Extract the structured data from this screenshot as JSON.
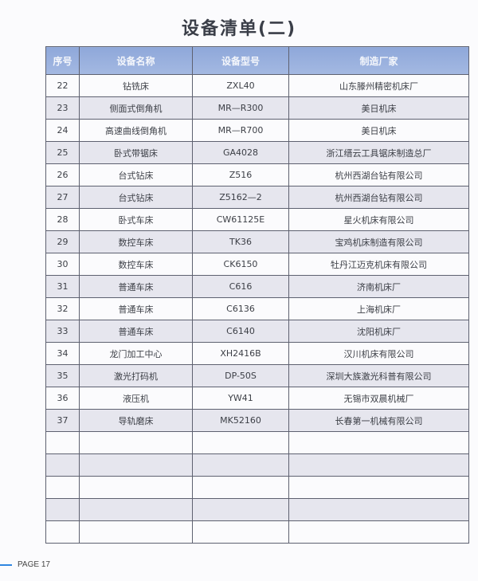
{
  "title": "设备清单(二)",
  "table": {
    "headers": [
      "序号",
      "设备名称",
      "设备型号",
      "制造厂家"
    ],
    "rows": [
      [
        "22",
        "钻铣床",
        "ZXL40",
        "山东滕州精密机床厂"
      ],
      [
        "23",
        "侧面式倒角机",
        "MR—R300",
        "美日机床"
      ],
      [
        "24",
        "高速曲线倒角机",
        "MR—R700",
        "美日机床"
      ],
      [
        "25",
        "卧式带锯床",
        "GA4028",
        "浙江缙云工具锯床制造总厂"
      ],
      [
        "26",
        "台式钻床",
        "Z516",
        "杭州西湖台钻有限公司"
      ],
      [
        "27",
        "台式钻床",
        "Z5162—2",
        "杭州西湖台钻有限公司"
      ],
      [
        "28",
        "卧式车床",
        "CW61125E",
        "星火机床有限公司"
      ],
      [
        "29",
        "数控车床",
        "TK36",
        "宝鸡机床制造有限公司"
      ],
      [
        "30",
        "数控车床",
        "CK6150",
        "牡丹江迈克机床有限公司"
      ],
      [
        "31",
        "普通车床",
        "C616",
        "济南机床厂"
      ],
      [
        "32",
        "普通车床",
        "C6136",
        "上海机床厂"
      ],
      [
        "33",
        "普通车床",
        "C6140",
        "沈阳机床厂"
      ],
      [
        "34",
        "龙门加工中心",
        "XH2416B",
        "汉川机床有限公司"
      ],
      [
        "35",
        "激光打码机",
        "DP-50S",
        "深圳大族激光科普有限公司"
      ],
      [
        "36",
        "液压机",
        "YW41",
        "无锡市双晨机械厂"
      ],
      [
        "37",
        "导轨磨床",
        "MK52160",
        "长春第一机械有限公司"
      ],
      [
        "",
        "",
        "",
        ""
      ],
      [
        "",
        "",
        "",
        ""
      ],
      [
        "",
        "",
        "",
        ""
      ],
      [
        "",
        "",
        "",
        ""
      ],
      [
        "",
        "",
        "",
        ""
      ]
    ]
  },
  "footer": {
    "page_label": "PAGE 17"
  },
  "colors": {
    "header_bg": "#9ab1de",
    "accent": "#2f86e0",
    "alt_row": "#e6e6ee"
  }
}
